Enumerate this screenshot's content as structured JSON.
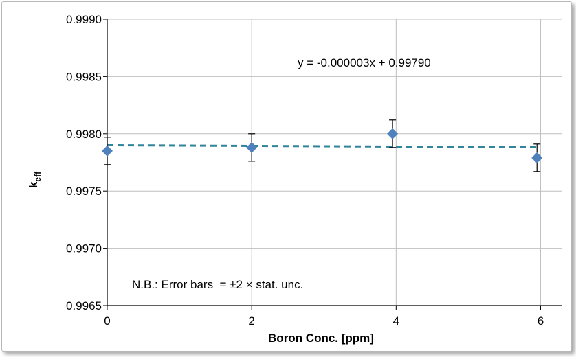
{
  "chart_data": {
    "type": "scatter",
    "x": [
      0,
      2,
      3.95,
      5.95
    ],
    "y": [
      0.99785,
      0.99788,
      0.998,
      0.99779
    ],
    "error": [
      0.00012,
      0.00012,
      0.00012,
      0.00012
    ],
    "xlim": [
      0,
      6.3
    ],
    "ylim": [
      0.9965,
      0.999
    ],
    "xticks": [
      "0",
      "2",
      "4",
      "6"
    ],
    "yticks": [
      "0.9965",
      "0.9970",
      "0.9975",
      "0.9980",
      "0.9985",
      "0.9990"
    ],
    "xlabel": "Boron Conc. [ppm]",
    "ylabel_main": "k",
    "ylabel_sub": "eff",
    "trendline": {
      "slope": -3e-06,
      "intercept": 0.9979,
      "equation": "y = -0.000003x + 0.99790"
    },
    "note": "N.B.: Error bars  = ±2 × stat. unc.",
    "grid": true,
    "colors": {
      "marker": "#4f81bd",
      "trendline": "#31849b",
      "grid": "#bfbfbf"
    }
  }
}
